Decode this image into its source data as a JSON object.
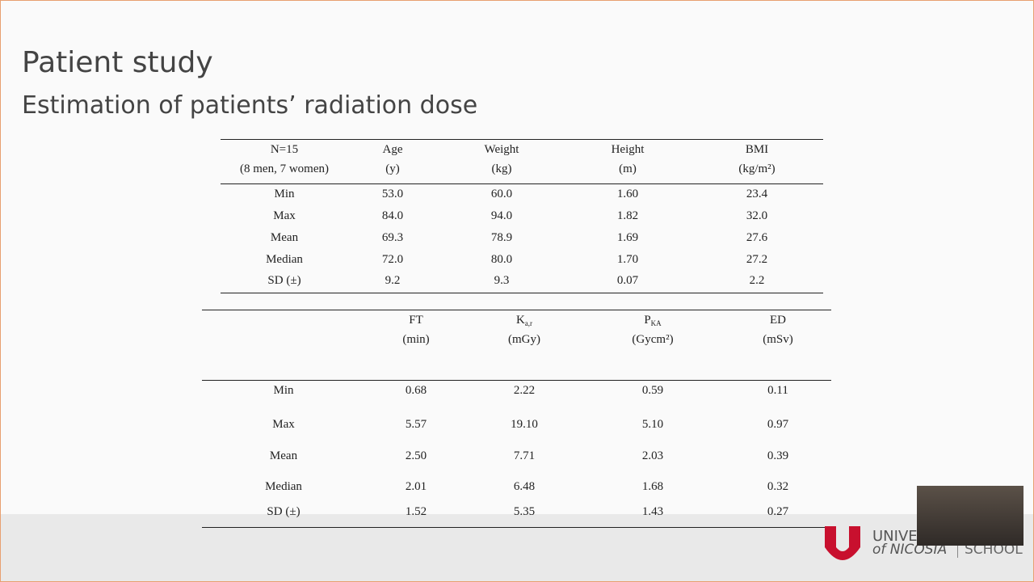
{
  "slide": {
    "title": "Patient study",
    "subtitle": "Estimation of patients’ radiation dose"
  },
  "table1": {
    "header": [
      {
        "name": "N=15",
        "unit": "(8 men, 7 women)"
      },
      {
        "name": "Age",
        "unit": "(y)"
      },
      {
        "name": "Weight",
        "unit": "(kg)"
      },
      {
        "name": "Height",
        "unit": "(m)"
      },
      {
        "name": "BMI",
        "unit": "(kg/m²)"
      }
    ],
    "rows": [
      [
        "Min",
        "53.0",
        "60.0",
        "1.60",
        "23.4"
      ],
      [
        "Max",
        "84.0",
        "94.0",
        "1.82",
        "32.0"
      ],
      [
        "Mean",
        "69.3",
        "78.9",
        "1.69",
        "27.6"
      ],
      [
        "Median",
        "72.0",
        "80.0",
        "1.70",
        "27.2"
      ],
      [
        "SD (±)",
        "9.2",
        "9.3",
        "0.07",
        "2.2"
      ]
    ]
  },
  "table2": {
    "header": [
      {
        "name": "FT",
        "unit": "(min)"
      },
      {
        "name": "K",
        "sub": "a,r",
        "unit": "(mGy)"
      },
      {
        "name": "P",
        "sub": "KA",
        "unit": "(Gycm²)"
      },
      {
        "name": "ED",
        "unit": "(mSv)"
      }
    ],
    "rows": [
      [
        "Min",
        "0.68",
        "2.22",
        "0.59",
        "0.11"
      ],
      [
        "Max",
        "5.57",
        "19.10",
        "5.10",
        "0.97"
      ],
      [
        "Mean",
        "2.50",
        "7.71",
        "2.03",
        "0.39"
      ],
      [
        "Median",
        "2.01",
        "6.48",
        "1.68",
        "0.32"
      ],
      [
        "SD (±)",
        "1.52",
        "5.35",
        "1.43",
        "0.27"
      ]
    ]
  },
  "logo": {
    "line1": "UNIVE",
    "line2": "of NICOSIA",
    "line3": "SCHOOL"
  }
}
